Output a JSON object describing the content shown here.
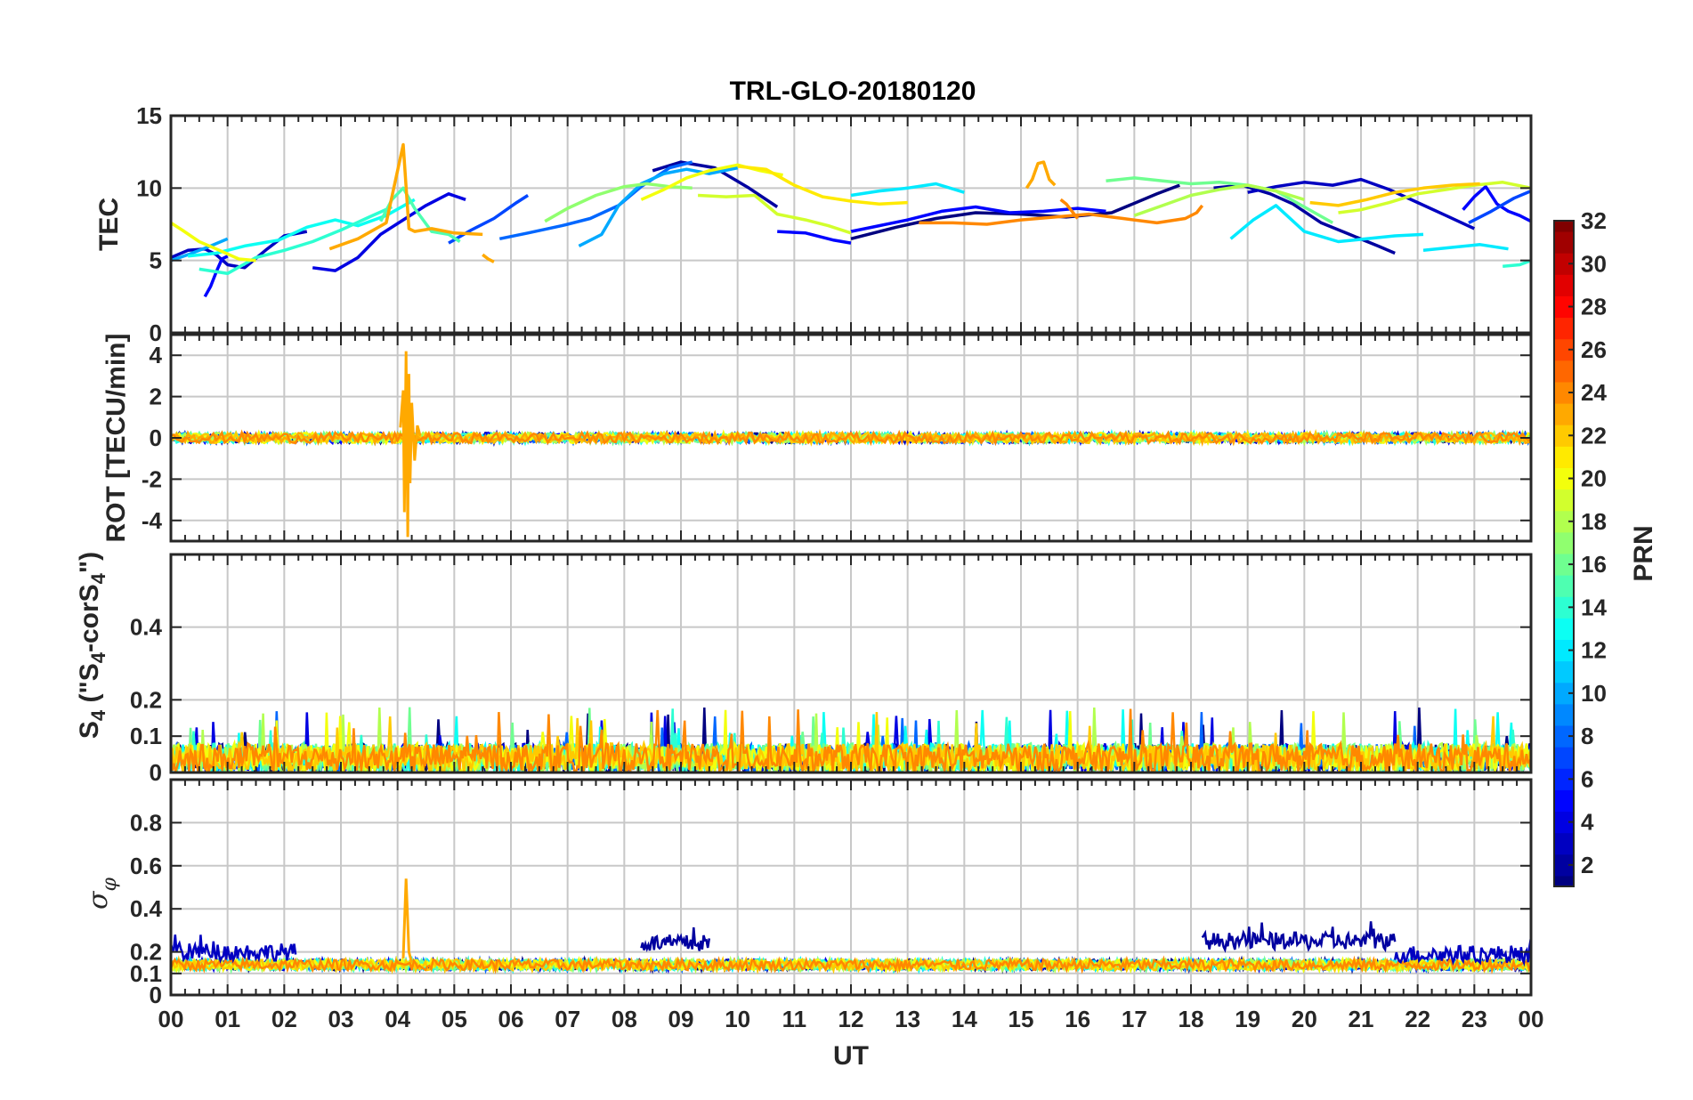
{
  "colors": {
    "prn_1": "#00008f",
    "prn_4": "#0000ff",
    "prn_8": "#0070ff",
    "prn_12": "#00dfff",
    "prn_14": "#40ffbf",
    "prn_16": "#80ff80",
    "prn_18": "#bfff40",
    "prn_20": "#ffff00",
    "prn_22": "#ffdf00",
    "prn_24": "#ff8f00",
    "prn_26": "#ff4000",
    "prn_30": "#cf0000",
    "prn_32": "#800000",
    "grid": "#c8c8c8",
    "axis": "#262626"
  },
  "chart_data": {
    "title": "TRL-GLO-20180120",
    "type": "multi-panel line",
    "xlabel": "UT",
    "x_range": [
      0,
      24
    ],
    "x_tick_labels": [
      "00",
      "01",
      "02",
      "03",
      "04",
      "05",
      "06",
      "07",
      "08",
      "09",
      "10",
      "11",
      "12",
      "13",
      "14",
      "15",
      "16",
      "17",
      "18",
      "19",
      "20",
      "21",
      "22",
      "23",
      "00"
    ],
    "colorbar": {
      "label": "PRN",
      "range": [
        1,
        32
      ],
      "tick_labels": [
        "2",
        "4",
        "6",
        "8",
        "10",
        "12",
        "14",
        "16",
        "18",
        "20",
        "22",
        "24",
        "26",
        "28",
        "30",
        "32"
      ],
      "colormap": "jet"
    },
    "panels": [
      {
        "ylabel": "TEC",
        "ylim": [
          0,
          15
        ],
        "y_ticks": [
          0,
          5,
          10,
          15
        ],
        "y_tick_labels": [
          "0",
          "5",
          "10",
          "15"
        ],
        "series": [
          {
            "prn": 1,
            "x": [
              12.0,
              12.8,
              13.5,
              14.2,
              15.0,
              15.8,
              16.6,
              17.4,
              17.8
            ],
            "y": [
              6.5,
              7.3,
              7.9,
              8.3,
              8.2,
              8.0,
              8.3,
              9.6,
              10.2
            ]
          },
          {
            "prn": 2,
            "x": [
              8.5,
              9.0,
              9.6,
              10.2,
              10.7
            ],
            "y": [
              11.2,
              11.8,
              11.4,
              10.0,
              8.7
            ]
          },
          {
            "prn": 2,
            "x": [
              18.4,
              18.9,
              19.4,
              19.8,
              20.3,
              20.8,
              21.3,
              21.6
            ],
            "y": [
              10.0,
              10.2,
              9.6,
              8.9,
              7.6,
              6.8,
              6.0,
              5.5
            ]
          },
          {
            "prn": 3,
            "x": [
              0.0,
              0.3,
              0.6,
              0.8,
              1.0,
              1.3,
              1.7,
              2.0,
              2.4
            ],
            "y": [
              5.2,
              5.7,
              5.8,
              5.4,
              4.7,
              4.5,
              5.8,
              6.7,
              7.0
            ]
          },
          {
            "prn": 3,
            "x": [
              19.0,
              19.5,
              20.0,
              20.5,
              21.0,
              21.5,
              22.0,
              22.5,
              23.0
            ],
            "y": [
              9.7,
              10.1,
              10.4,
              10.2,
              10.6,
              9.9,
              9.0,
              8.1,
              7.2
            ]
          },
          {
            "prn": 4,
            "x": [
              2.5,
              2.9,
              3.3,
              3.7,
              4.1,
              4.5,
              4.9,
              5.2
            ],
            "y": [
              4.5,
              4.3,
              5.2,
              6.8,
              7.8,
              8.8,
              9.6,
              9.2
            ]
          },
          {
            "prn": 5,
            "x": [
              10.7,
              11.2,
              11.7,
              12.0
            ],
            "y": [
              7.0,
              6.9,
              6.4,
              6.2
            ]
          },
          {
            "prn": 5,
            "x": [
              12.0,
              12.5,
              13.0,
              13.6,
              14.2,
              14.8,
              15.4,
              16.0,
              16.5
            ],
            "y": [
              7.0,
              7.4,
              7.8,
              8.4,
              8.7,
              8.3,
              8.4,
              8.6,
              8.4
            ]
          },
          {
            "prn": 5,
            "x": [
              22.8,
              23.0,
              23.2,
              23.4,
              23.6,
              23.8,
              24.0
            ],
            "y": [
              8.5,
              9.4,
              10.1,
              8.9,
              8.4,
              8.1,
              7.7
            ]
          },
          {
            "prn": 5,
            "x": [
              0.6,
              0.7,
              0.8,
              0.9,
              1.0
            ],
            "y": [
              2.5,
              3.2,
              4.2,
              5.1,
              5.3
            ]
          },
          {
            "prn": 7,
            "x": [
              4.9,
              5.3,
              5.7,
              6.1,
              6.3
            ],
            "y": [
              6.2,
              7.1,
              7.9,
              9.0,
              9.5
            ]
          },
          {
            "prn": 7,
            "x": [
              22.9,
              23.3,
              23.7,
              24.0
            ],
            "y": [
              7.6,
              8.4,
              9.3,
              9.8
            ]
          },
          {
            "prn": 8,
            "x": [
              5.8,
              6.3,
              6.9,
              7.4,
              7.9,
              8.3,
              8.8,
              9.2
            ],
            "y": [
              6.5,
              6.9,
              7.4,
              7.9,
              8.8,
              10.1,
              11.4,
              11.8
            ]
          },
          {
            "prn": 10,
            "x": [
              7.2,
              7.6,
              7.9,
              8.3,
              8.7,
              9.1,
              9.5,
              10.0
            ],
            "y": [
              6.0,
              6.8,
              8.8,
              10.3,
              11.0,
              11.3,
              11.0,
              11.4
            ]
          },
          {
            "prn": 10,
            "x": [
              0.0,
              0.3,
              0.7,
              1.0
            ],
            "y": [
              5.0,
              5.4,
              6.0,
              6.5
            ]
          },
          {
            "prn": 12,
            "x": [
              12.0,
              12.5,
              13.0,
              13.5,
              14.0
            ],
            "y": [
              9.5,
              9.8,
              10.0,
              10.3,
              9.7
            ]
          },
          {
            "prn": 12,
            "x": [
              18.7,
              19.1,
              19.5,
              20.0,
              20.6,
              21.1,
              21.6,
              22.1
            ],
            "y": [
              6.5,
              7.8,
              8.8,
              7.0,
              6.3,
              6.5,
              6.7,
              6.8
            ]
          },
          {
            "prn": 12,
            "x": [
              22.1,
              22.6,
              23.1,
              23.6
            ],
            "y": [
              5.7,
              5.9,
              6.1,
              5.8
            ]
          },
          {
            "prn": 13,
            "x": [
              0.3,
              0.8,
              1.3,
              1.9,
              2.4,
              2.9,
              3.3,
              3.8,
              4.3
            ],
            "y": [
              5.3,
              5.5,
              6.0,
              6.4,
              7.3,
              7.8,
              7.4,
              8.1,
              9.2
            ]
          },
          {
            "prn": 14,
            "x": [
              0.5,
              1.0,
              1.5,
              2.0,
              2.5,
              3.0,
              3.5,
              3.9
            ],
            "y": [
              4.4,
              4.1,
              5.2,
              5.7,
              6.3,
              7.1,
              8.0,
              8.7
            ]
          },
          {
            "prn": 14,
            "x": [
              23.5,
              23.8,
              24.0
            ],
            "y": [
              4.6,
              4.7,
              5.0
            ]
          },
          {
            "prn": 15,
            "x": [
              3.7,
              3.9,
              4.1,
              4.3,
              4.6,
              4.9,
              5.1
            ],
            "y": [
              7.7,
              9.2,
              10.0,
              8.6,
              7.0,
              6.8,
              6.3
            ]
          },
          {
            "prn": 16,
            "x": [
              16.5,
              17.0,
              17.5,
              18.0,
              18.5,
              19.0,
              19.5,
              20.0,
              20.5
            ],
            "y": [
              10.5,
              10.7,
              10.5,
              10.3,
              10.4,
              10.2,
              9.8,
              8.7,
              7.6
            ]
          },
          {
            "prn": 17,
            "x": [
              6.6,
              7.0,
              7.5,
              8.0,
              8.4,
              8.8,
              9.2
            ],
            "y": [
              7.7,
              8.6,
              9.5,
              10.1,
              10.3,
              10.1,
              10.0
            ]
          },
          {
            "prn": 18,
            "x": [
              17.0,
              17.5,
              18.0,
              18.5,
              19.0,
              19.5,
              20.0
            ],
            "y": [
              8.1,
              8.8,
              9.5,
              9.9,
              10.2,
              9.8,
              9.2
            ]
          },
          {
            "prn": 19,
            "x": [
              9.3,
              9.8,
              10.3,
              10.7,
              11.2,
              11.6,
              12.0
            ],
            "y": [
              9.5,
              9.4,
              9.5,
              8.2,
              7.8,
              7.4,
              6.9
            ]
          },
          {
            "prn": 19,
            "x": [
              20.6,
              21.0,
              21.5,
              22.0,
              22.5,
              23.0,
              23.5,
              24.0
            ],
            "y": [
              8.3,
              8.5,
              9.0,
              9.6,
              9.9,
              10.2,
              10.4,
              10.0
            ]
          },
          {
            "prn": 20,
            "x": [
              0.0,
              0.2,
              0.5,
              0.8,
              1.2,
              1.5
            ],
            "y": [
              7.6,
              7.1,
              6.3,
              5.8,
              5.1,
              5.0
            ]
          },
          {
            "prn": 20,
            "x": [
              8.3,
              8.7,
              9.1,
              9.5,
              10.0,
              10.4,
              10.8
            ],
            "y": [
              9.2,
              9.9,
              10.7,
              11.2,
              11.6,
              11.2,
              10.9
            ]
          },
          {
            "prn": 21,
            "x": [
              10.0,
              10.5,
              11.0,
              11.5,
              12.0,
              12.5,
              13.0
            ],
            "y": [
              11.5,
              11.3,
              10.2,
              9.4,
              9.1,
              8.9,
              9.0
            ]
          },
          {
            "prn": 22,
            "x": [
              20.1,
              20.6,
              21.1,
              21.6,
              22.1,
              22.6,
              23.1
            ],
            "y": [
              9.0,
              8.8,
              9.2,
              9.7,
              10.0,
              10.2,
              10.3
            ]
          },
          {
            "prn": 23,
            "x": [
              2.8,
              3.3,
              3.8,
              4.1,
              4.2,
              4.3,
              4.6,
              5.0,
              5.5
            ],
            "y": [
              5.8,
              6.5,
              7.6,
              13.0,
              7.2,
              7.0,
              7.2,
              6.9,
              6.8
            ]
          },
          {
            "prn": 23,
            "x": [
              5.5,
              5.6,
              5.7
            ],
            "y": [
              5.4,
              5.1,
              4.9
            ]
          },
          {
            "prn": 23,
            "x": [
              15.1,
              15.2,
              15.3,
              15.4,
              15.5,
              15.6
            ],
            "y": [
              10.0,
              10.6,
              11.7,
              11.8,
              10.6,
              10.2
            ]
          },
          {
            "prn": 24,
            "x": [
              13.2,
              13.8,
              14.4,
              15.0,
              15.6,
              16.2,
              16.8,
              17.4,
              17.9,
              18.1,
              18.2
            ],
            "y": [
              7.6,
              7.6,
              7.5,
              7.8,
              8.0,
              8.2,
              7.9,
              7.6,
              7.9,
              8.3,
              8.8
            ]
          },
          {
            "prn": 24,
            "x": [
              15.7,
              15.8,
              15.9,
              16.0
            ],
            "y": [
              9.2,
              8.9,
              8.4,
              7.9
            ]
          }
        ]
      },
      {
        "ylabel": "ROT [TECU/min]",
        "ylim": [
          -5,
          5
        ],
        "y_ticks": [
          -4,
          -2,
          0,
          2,
          4
        ],
        "y_tick_labels": [
          "-4",
          "-2",
          "0",
          "2",
          "4"
        ],
        "spike": {
          "prn": 23,
          "x": [
            4.05,
            4.1,
            4.12,
            4.15,
            4.18,
            4.2,
            4.22,
            4.25,
            4.3,
            4.35,
            4.4
          ],
          "y": [
            0.5,
            2.3,
            -3.6,
            4.2,
            -4.8,
            3.1,
            -2.2,
            1.7,
            -1.1,
            0.6,
            0.1
          ]
        },
        "noise_band": 0.25
      },
      {
        "ylabel": "S4 (\"S4-corS4\")",
        "ylabel_main": "S",
        "ylabel_sub1": "4",
        "ylabel_mid": " (\"S",
        "ylabel_sub2": "4",
        "ylabel_mid2": "-corS",
        "ylabel_sub3": "4",
        "ylabel_end": "\")",
        "ylim": [
          0,
          0.6
        ],
        "y_ticks": [
          0,
          0.1,
          0.2,
          0.4
        ],
        "y_tick_labels": [
          "0",
          "0.1",
          "0.2",
          "0.4"
        ],
        "typical_max": 0.1,
        "peak_values": [
          0.2,
          0.17,
          0.2,
          0.19,
          0.18
        ]
      },
      {
        "ylabel": "σφ",
        "ylabel_sym": "σ",
        "ylabel_sub": "φ",
        "ylim": [
          0,
          1
        ],
        "y_ticks": [
          0,
          0.1,
          0.2,
          0.4,
          0.6,
          0.8
        ],
        "y_tick_labels": [
          "0",
          "0.1",
          "0.2",
          "0.4",
          "0.6",
          "0.8"
        ],
        "baseline": 0.14,
        "spike": {
          "prn": 23,
          "x": [
            4.1,
            4.15,
            4.2,
            4.25
          ],
          "y": [
            0.17,
            0.54,
            0.2,
            0.15
          ]
        },
        "elevated_intervals": [
          {
            "prn": 2,
            "x0": 8.3,
            "x1": 9.5,
            "level": 0.24
          },
          {
            "prn": 3,
            "x0": 0.0,
            "x1": 2.2,
            "level": 0.2
          },
          {
            "prn": 2,
            "x0": 18.2,
            "x1": 21.6,
            "level": 0.25
          },
          {
            "prn": 3,
            "x0": 21.6,
            "x1": 24.0,
            "level": 0.19
          }
        ]
      }
    ]
  }
}
